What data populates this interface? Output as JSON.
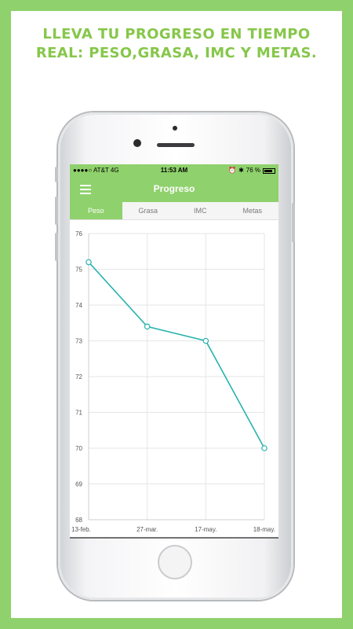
{
  "headline": {
    "line1": "LLEVA TU PROGRESO EN TIEMPO",
    "line2": "REAL: PESO,GRASA, IMC Y METAS."
  },
  "status_bar": {
    "carrier": "●●●●○ AT&T 4G",
    "time": "11:53 AM",
    "battery": "76 %",
    "icons": [
      "signal-icon",
      "wifi-icon",
      "alarm-icon",
      "bluetooth-icon",
      "battery-icon"
    ]
  },
  "nav": {
    "title": "Progreso",
    "menu_icon": "hamburger-menu-icon"
  },
  "tabs": [
    {
      "label": "Peso",
      "active": true
    },
    {
      "label": "Grasa",
      "active": false
    },
    {
      "label": "IMC",
      "active": false
    },
    {
      "label": "Metas",
      "active": false
    }
  ],
  "colors": {
    "brand_green": "#8fd16c",
    "line": "#27b3ad",
    "grid": "#e6e6e6"
  },
  "chart_data": {
    "type": "line",
    "x": [
      "13-feb.",
      "27-mar.",
      "17-may.",
      "18-may."
    ],
    "series": [
      {
        "values": [
          75.2,
          73.4,
          73.0,
          70.0
        ]
      }
    ],
    "ylim": [
      68,
      76
    ],
    "yticks": [
      76,
      75,
      74,
      73,
      72,
      71,
      70,
      69,
      68
    ],
    "grid": true
  }
}
